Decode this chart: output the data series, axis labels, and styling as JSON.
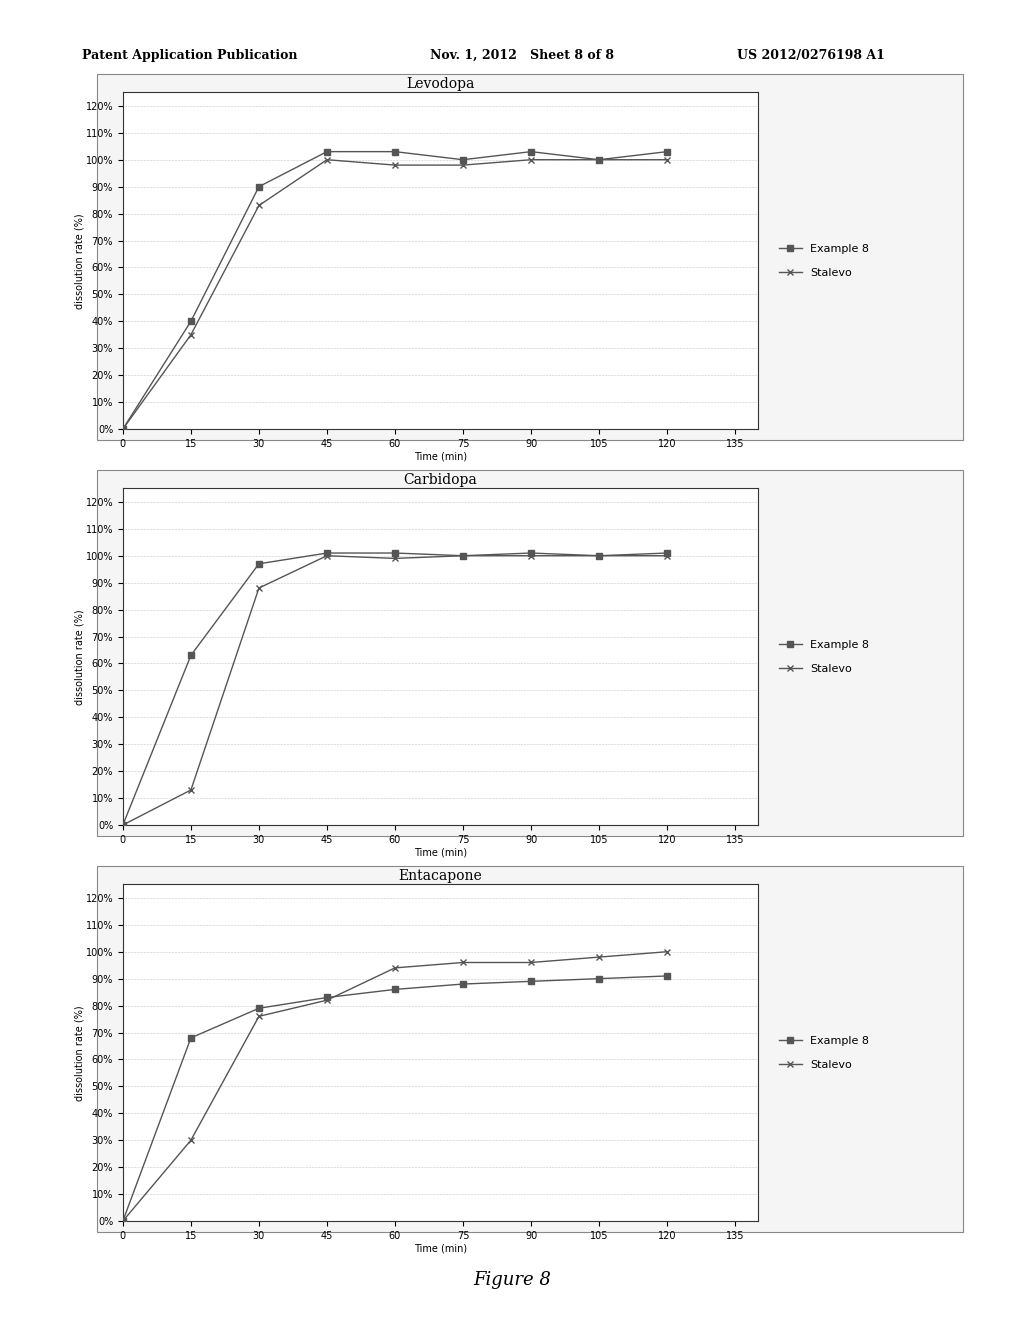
{
  "charts": [
    {
      "title": "Levodopa",
      "example8_x": [
        0,
        15,
        30,
        45,
        60,
        75,
        90,
        105,
        120
      ],
      "example8_y": [
        0,
        40,
        90,
        103,
        103,
        100,
        103,
        100,
        103
      ],
      "stalevo_x": [
        0,
        15,
        30,
        45,
        60,
        75,
        90,
        105,
        120
      ],
      "stalevo_y": [
        0,
        35,
        83,
        100,
        98,
        98,
        100,
        100,
        100
      ]
    },
    {
      "title": "Carbidopa",
      "example8_x": [
        0,
        15,
        30,
        45,
        60,
        75,
        90,
        105,
        120
      ],
      "example8_y": [
        0,
        63,
        97,
        101,
        101,
        100,
        101,
        100,
        101
      ],
      "stalevo_x": [
        0,
        15,
        30,
        45,
        60,
        75,
        90,
        105,
        120
      ],
      "stalevo_y": [
        0,
        13,
        88,
        100,
        99,
        100,
        100,
        100,
        100
      ]
    },
    {
      "title": "Entacapone",
      "example8_x": [
        0,
        15,
        30,
        45,
        60,
        75,
        90,
        105,
        120
      ],
      "example8_y": [
        0,
        68,
        79,
        83,
        86,
        88,
        89,
        90,
        91
      ],
      "stalevo_x": [
        0,
        15,
        30,
        45,
        60,
        75,
        90,
        105,
        120
      ],
      "stalevo_y": [
        0,
        30,
        76,
        82,
        94,
        96,
        96,
        98,
        100
      ]
    }
  ],
  "xlabel": "Time (min)",
  "ylabel": "dissolution rate (%)",
  "xticks": [
    0,
    15,
    30,
    45,
    60,
    75,
    90,
    105,
    120,
    135
  ],
  "ytick_vals": [
    0,
    10,
    20,
    30,
    40,
    50,
    60,
    70,
    80,
    90,
    100,
    110,
    120
  ],
  "ytick_labels": [
    "0%",
    "10%",
    "20%",
    "30%",
    "40%",
    "50%",
    "60%",
    "70%",
    "80%",
    "90%",
    "100%",
    "110%",
    "120%"
  ],
  "xlim": [
    0,
    140
  ],
  "ylim": [
    0,
    125
  ],
  "legend_example8": "Example 8",
  "legend_stalevo": "Stalevo",
  "line_color": "#555555",
  "marker_example8": "s",
  "marker_stalevo": "x",
  "figure_caption": "Figure 8",
  "header_left": "Patent Application Publication",
  "header_mid": "Nov. 1, 2012   Sheet 8 of 8",
  "header_right": "US 2012/0276198 A1",
  "bg_color": "#f0f0f0",
  "chart_bg_color": "#ffffff",
  "outer_chart_bg": "#e8e8e8",
  "grid_color": "#999999",
  "font_size_title": 10,
  "font_size_axis": 7,
  "font_size_tick": 7,
  "font_size_legend": 8,
  "font_size_caption": 13,
  "font_size_header": 9
}
